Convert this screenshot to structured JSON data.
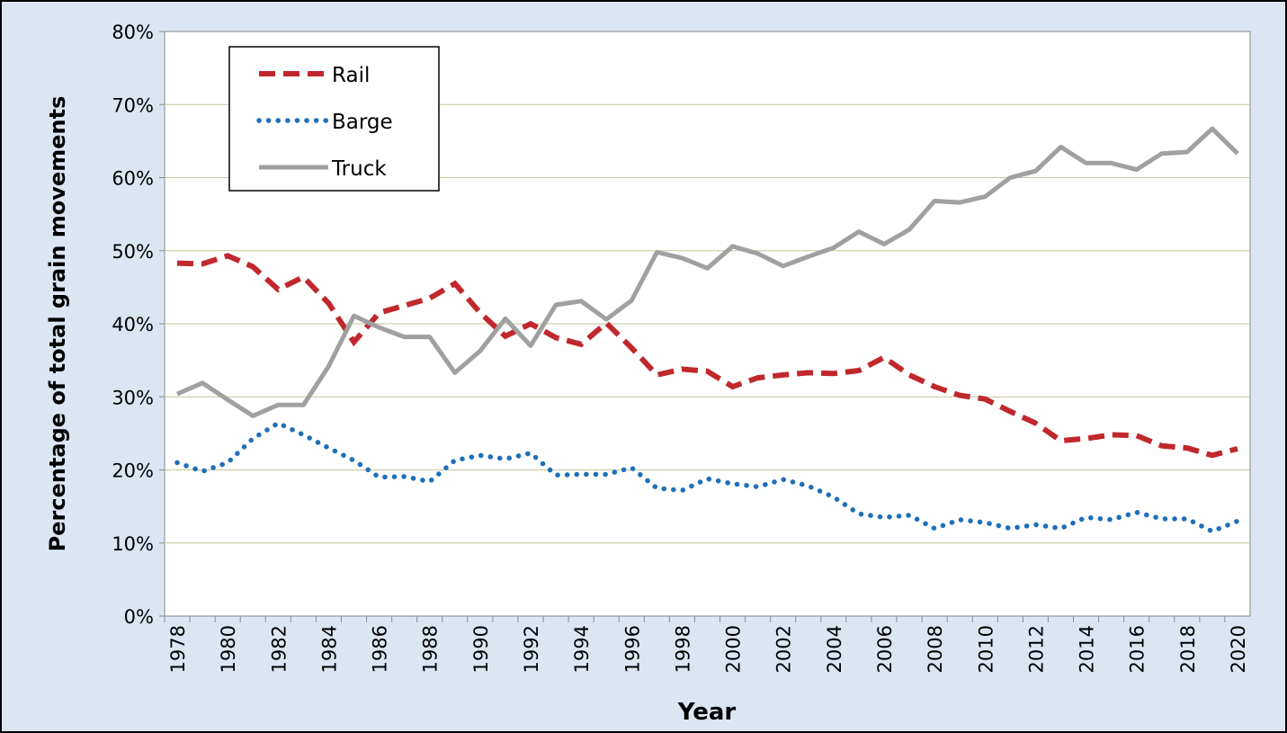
{
  "chart_data": {
    "type": "line",
    "x_label": "Year",
    "y_label": "Percentage of total grain movements",
    "categories": [
      "1978",
      null,
      "1980",
      null,
      "1982",
      null,
      "1984",
      null,
      "1986",
      null,
      "1988",
      null,
      "1990",
      null,
      "1992",
      null,
      "1994",
      null,
      "1996",
      null,
      "1998",
      null,
      "2000",
      null,
      "2002",
      null,
      "2004",
      null,
      "2006",
      null,
      "2008",
      null,
      "2010",
      null,
      "2012",
      null,
      "2014",
      null,
      "2016",
      null,
      "2018",
      null,
      "2020"
    ],
    "series": [
      {
        "name": "Rail",
        "color": "#c0282d",
        "style": "dashed",
        "values": [
          48.3,
          48.2,
          49.3,
          47.8,
          44.7,
          46.4,
          42.8,
          37.5,
          41.5,
          42.5,
          43.5,
          45.5,
          41.5,
          38.3,
          40.0,
          38.1,
          37.2,
          40.1,
          36.7,
          33.0,
          33.8,
          33.5,
          31.4,
          32.6,
          33.0,
          33.3,
          33.2,
          33.6,
          35.4,
          33.0,
          31.4,
          30.2,
          29.7,
          28.0,
          26.4,
          24.0,
          24.3,
          24.8,
          24.7,
          23.3,
          23.0,
          22.0,
          22.9
        ]
      },
      {
        "name": "Barge",
        "color": "#1f6fb8",
        "style": "dotted",
        "values": [
          21.0,
          19.8,
          21.0,
          24.3,
          26.4,
          24.8,
          23.0,
          21.3,
          19.0,
          19.1,
          18.4,
          21.3,
          22.0,
          21.5,
          22.3,
          19.3,
          19.4,
          19.4,
          20.3,
          17.5,
          17.2,
          18.8,
          18.1,
          17.7,
          18.7,
          17.8,
          16.3,
          14.0,
          13.5,
          13.8,
          12.0,
          13.2,
          12.8,
          12.0,
          12.5,
          12.0,
          13.5,
          13.2,
          14.2,
          13.3,
          13.3,
          11.6,
          13.0
        ]
      },
      {
        "name": "Truck",
        "color": "#a0a0a0",
        "style": "solid",
        "values": [
          30.4,
          31.9,
          29.6,
          27.4,
          28.9,
          28.9,
          34.2,
          41.1,
          39.5,
          38.2,
          38.2,
          33.3,
          36.3,
          40.7,
          37.0,
          42.6,
          43.1,
          40.6,
          43.2,
          49.8,
          49.0,
          47.6,
          50.6,
          49.6,
          47.9,
          49.2,
          50.4,
          52.6,
          50.9,
          52.9,
          56.8,
          56.6,
          57.4,
          60.0,
          60.9,
          64.2,
          62.0,
          62.0,
          61.1,
          63.3,
          63.5,
          66.7,
          63.3
        ]
      }
    ],
    "ylim": [
      0,
      80
    ],
    "yticks": [
      {
        "value": 0,
        "label": "0%"
      },
      {
        "value": 10,
        "label": "10%"
      },
      {
        "value": 20,
        "label": "20%"
      },
      {
        "value": 30,
        "label": "30%"
      },
      {
        "value": 40,
        "label": "40%"
      },
      {
        "value": 50,
        "label": "50%"
      },
      {
        "value": 60,
        "label": "60%"
      },
      {
        "value": 70,
        "label": "70%"
      },
      {
        "value": 80,
        "label": "80%"
      }
    ],
    "grid": true,
    "legend": "upper left"
  }
}
